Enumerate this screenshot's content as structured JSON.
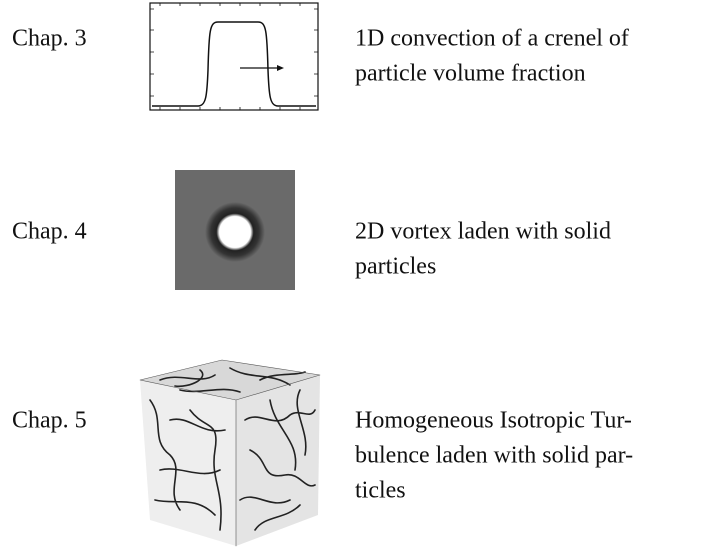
{
  "rows": [
    {
      "chapter": "Chap. 3",
      "description": [
        "1D convection of a crenel of",
        "particle volume fraction"
      ]
    },
    {
      "chapter": "Chap. 4",
      "description": [
        "2D vortex laden with solid",
        "particles"
      ]
    },
    {
      "chapter": "Chap. 5",
      "description": [
        "Homogeneous Isotropic Tur-",
        "bulence laden with solid par-",
        "ticles"
      ]
    }
  ]
}
